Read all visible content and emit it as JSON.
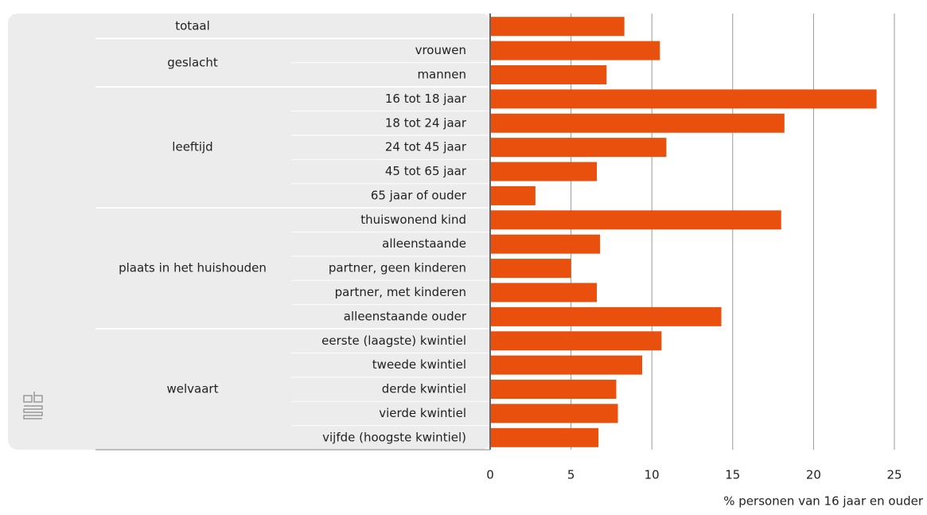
{
  "chart_data": {
    "type": "bar",
    "color": "#e9500e",
    "xlabel": "% personen van 16 jaar en ouder",
    "xlim": [
      0,
      25
    ],
    "xticks": [
      0,
      5,
      10,
      15,
      20,
      25
    ],
    "grid": true,
    "groups": [
      {
        "name": "totaal",
        "rows": [
          {
            "label": null,
            "value": 8.3
          }
        ]
      },
      {
        "name": "geslacht",
        "rows": [
          {
            "label": "vrouwen",
            "value": 10.5
          },
          {
            "label": "mannen",
            "value": 7.2
          }
        ]
      },
      {
        "name": "leeftijd",
        "rows": [
          {
            "label": "16 tot 18 jaar",
            "value": 23.9
          },
          {
            "label": "18 tot 24 jaar",
            "value": 18.2
          },
          {
            "label": "24 tot 45 jaar",
            "value": 10.9
          },
          {
            "label": "45 tot 65 jaar",
            "value": 6.6
          },
          {
            "label": "65 jaar of ouder",
            "value": 2.8
          }
        ]
      },
      {
        "name": "plaats in het huishouden",
        "rows": [
          {
            "label": "thuiswonend kind",
            "value": 18.0
          },
          {
            "label": "alleenstaande",
            "value": 6.8
          },
          {
            "label": "partner, geen kinderen",
            "value": 5.0
          },
          {
            "label": "partner, met kinderen",
            "value": 6.6
          },
          {
            "label": "alleenstaande ouder",
            "value": 14.3
          }
        ]
      },
      {
        "name": "welvaart",
        "rows": [
          {
            "label": "eerste (laagste) kwintiel",
            "value": 10.6
          },
          {
            "label": "tweede kwintiel",
            "value": 9.4
          },
          {
            "label": "derde kwintiel",
            "value": 7.8
          },
          {
            "label": "vierde kwintiel",
            "value": 7.9
          },
          {
            "label": "vijfde (hoogste kwintiel)",
            "value": 6.7
          }
        ]
      }
    ]
  }
}
